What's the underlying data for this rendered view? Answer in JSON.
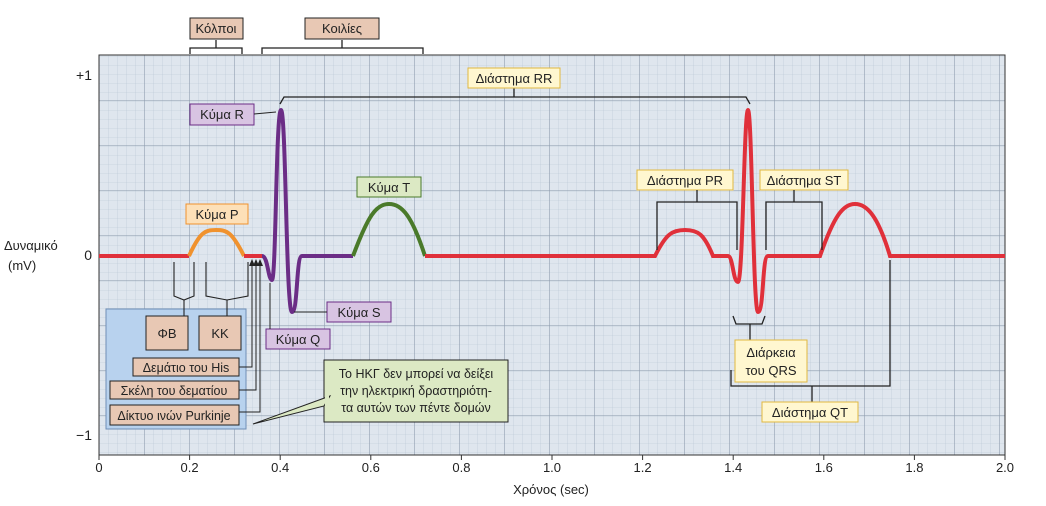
{
  "axis": {
    "y_title_line1": "Δυναμικό",
    "y_title_line2": "(mV)",
    "y_ticks": [
      "+1",
      "0",
      "−1"
    ],
    "x_title": "Χρόνος (sec)",
    "x_ticks": [
      "0",
      "0.2",
      "0.4",
      "0.6",
      "0.8",
      "1.0",
      "1.2",
      "1.4",
      "1.6",
      "1.8",
      "2.0"
    ]
  },
  "labels": {
    "atria": "Κόλποι",
    "ventricles": "Κοιλίες",
    "rr": "Διάστημα RR",
    "r_wave": "Κύμα R",
    "t_wave": "Κύμα T",
    "p_wave": "Κύμα P",
    "s_wave": "Κύμα S",
    "q_wave": "Κύμα Q",
    "pr": "Διάστημα PR",
    "st": "Διάστημα ST",
    "qrs_line1": "Διάρκεια",
    "qrs_line2": "του QRS",
    "qt": "Διάστημα QT",
    "sa_node": "ΦΒ",
    "av_node": "ΚΚ",
    "his": "Δεμάτιο του His",
    "branches": "Σκέλη του δεματίου",
    "purkinje": "Δίκτυο ινών Purkinje",
    "note_line1": "Το ΗΚΓ δεν μπορεί να δείξει",
    "note_line2": "την ηλεκτρική δραστηριότη-",
    "note_line3": "τα αυτών των πέντε δομών"
  },
  "colors": {
    "baseline": "#e0303a",
    "p_wave": "#f0922e",
    "qrs": "#6b2d86",
    "t_wave": "#4a7a2a",
    "grid_bg": "#dfe6ee",
    "grid_minor": "#b8c4d2",
    "grid_major": "#8a98aa",
    "tan_box": "#e8c8b4",
    "yellow_box": "#fff7d0",
    "purple_box": "#d8c4e2",
    "green_box": "#dce9c4",
    "orange_box": "#fde0b8",
    "blue_panel": "#b8d2ee"
  }
}
